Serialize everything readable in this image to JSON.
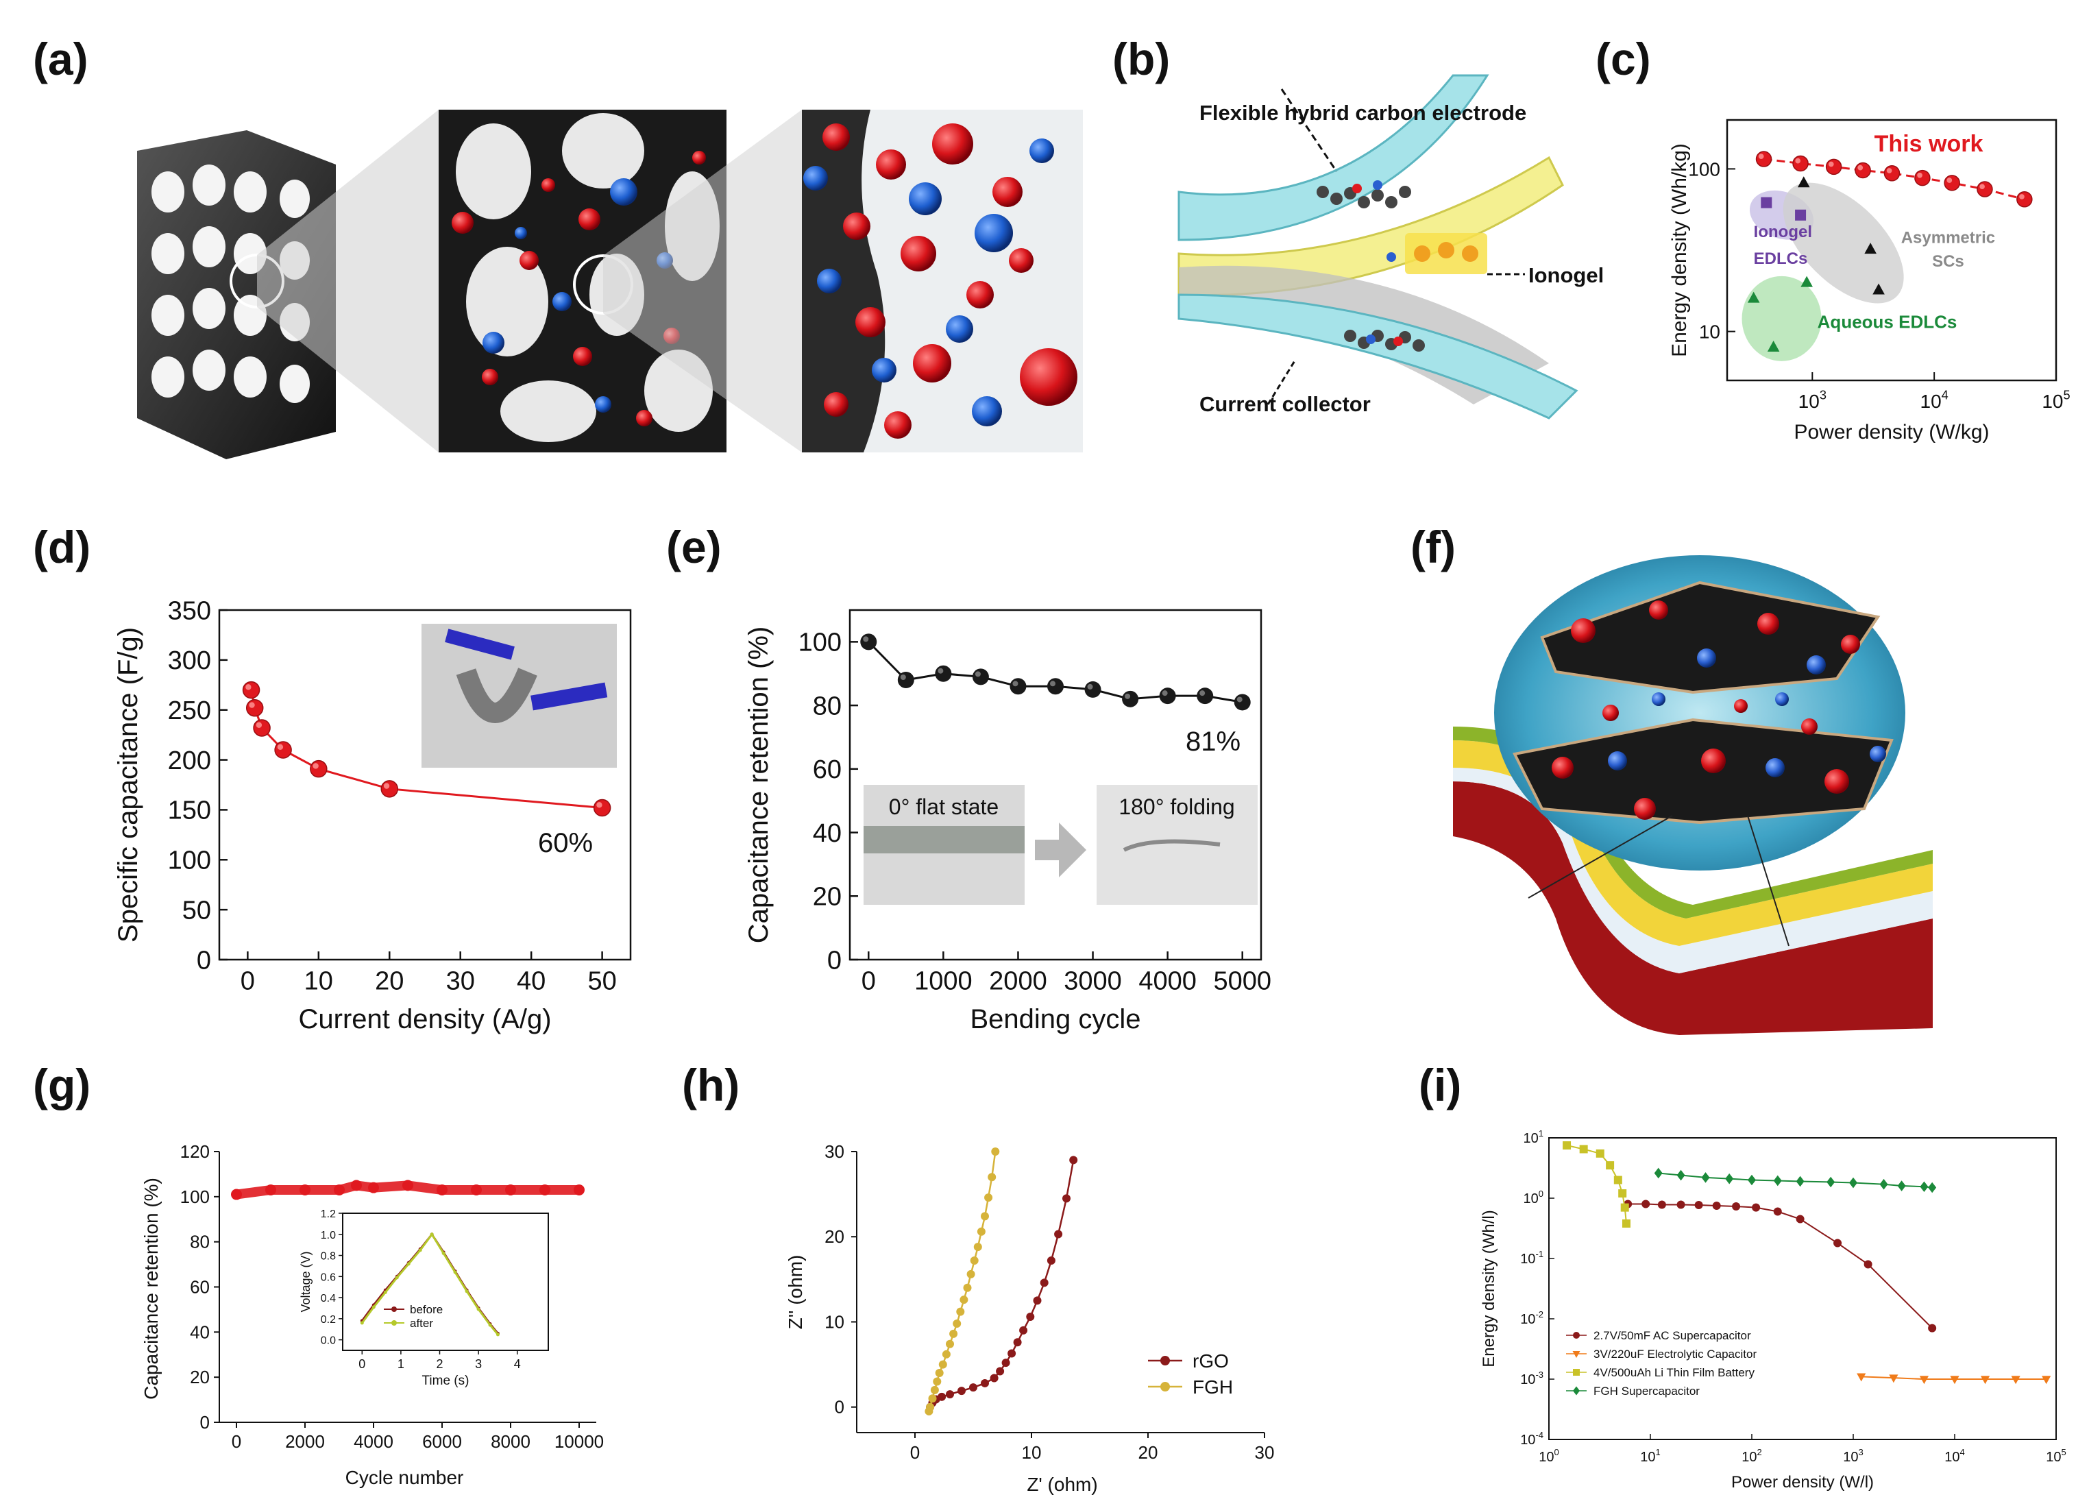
{
  "panel_labels": {
    "a": "(a)",
    "b": "(b)",
    "c": "(c)",
    "d": "(d)",
    "e": "(e)",
    "f": "(f)",
    "g": "(g)",
    "h": "(h)",
    "i": "(i)"
  },
  "illustration_b": {
    "label_electrode": "Flexible hybrid carbon electrode",
    "label_ionogel": "Ionogel",
    "label_collector": "Current collector"
  },
  "colors": {
    "red": "#e0191f",
    "black": "#111111",
    "green": "#1b8a3a",
    "orange": "#f07b1a",
    "olive": "#c9b233",
    "maroon": "#8b1a1a",
    "gray": "#8a8a8a",
    "purple": "#6a3fa0"
  },
  "chart_data": [
    {
      "id": "c",
      "type": "scatter",
      "xlabel": "Power density (W/kg)",
      "ylabel": "Energy density (Wh/kg)",
      "xscale": "log",
      "yscale": "log",
      "xlim": [
        200,
        100000
      ],
      "ylim": [
        5,
        200
      ],
      "xticks": [
        {
          "v": 1000,
          "base": "10",
          "exp": "3"
        },
        {
          "v": 10000,
          "base": "10",
          "exp": "4"
        },
        {
          "v": 100000,
          "base": "10",
          "exp": "5"
        }
      ],
      "yticks": [
        {
          "v": 10,
          "label": "10"
        },
        {
          "v": 100,
          "label": "100"
        }
      ],
      "series": [
        {
          "name": "This work",
          "marker": "circle",
          "color": "#e0191f",
          "line": true,
          "x": [
            400,
            800,
            1500,
            2600,
            4500,
            8000,
            14000,
            26000,
            55000
          ],
          "y": [
            115,
            108,
            103,
            98,
            94,
            88,
            82,
            75,
            65
          ]
        },
        {
          "name": "Ionogel EDLCs",
          "marker": "square",
          "color": "#6a3fa0",
          "line": false,
          "x": [
            420,
            800
          ],
          "y": [
            62,
            52
          ]
        },
        {
          "name": "Asymmetric SCs",
          "marker": "triangle",
          "color": "#111111",
          "line": false,
          "x": [
            850,
            3000,
            3500
          ],
          "y": [
            82,
            32,
            18
          ]
        },
        {
          "name": "Aqueous EDLCs",
          "marker": "triangle",
          "color": "#1b8a3a",
          "line": false,
          "x": [
            330,
            480,
            900
          ],
          "y": [
            16,
            8,
            20
          ]
        }
      ],
      "annotations": [
        "This work",
        "Ionogel\nEDLCs",
        "Asymmetric\nSCs",
        "Aqueous EDLCs"
      ]
    },
    {
      "id": "d",
      "type": "line",
      "xlabel": "Current density (A/g)",
      "ylabel": "Specific capacitance (F/g)",
      "xlim": [
        -4,
        54
      ],
      "ylim": [
        0,
        350
      ],
      "xticks": [
        0,
        10,
        20,
        30,
        40,
        50
      ],
      "yticks": [
        0,
        50,
        100,
        150,
        200,
        250,
        300,
        350
      ],
      "series": [
        {
          "name": "capacitance",
          "color": "#e0191f",
          "x": [
            0.5,
            1,
            2,
            5,
            10,
            20,
            50
          ],
          "y": [
            270,
            252,
            232,
            210,
            191,
            171,
            152
          ]
        }
      ],
      "annotations": [
        "60%"
      ]
    },
    {
      "id": "e",
      "type": "line",
      "xlabel": "Bending cycle",
      "ylabel": "Capacitance retention (%)",
      "xlim": [
        -250,
        5250
      ],
      "ylim": [
        0,
        110
      ],
      "xticks": [
        0,
        1000,
        2000,
        3000,
        4000,
        5000
      ],
      "yticks": [
        0,
        20,
        40,
        60,
        80,
        100
      ],
      "series": [
        {
          "name": "retention",
          "color": "#111111",
          "x": [
            0,
            500,
            1000,
            1500,
            2000,
            2500,
            3000,
            3500,
            4000,
            4500,
            5000
          ],
          "y": [
            100,
            88,
            90,
            89,
            86,
            86,
            85,
            82,
            83,
            83,
            81
          ]
        }
      ],
      "annotations": [
        "81%",
        "0° flat state",
        "180° folding"
      ]
    },
    {
      "id": "g",
      "type": "line",
      "xlabel": "Cycle number",
      "ylabel": "Capacitance retention (%)",
      "xlim": [
        -500,
        10500
      ],
      "ylim": [
        0,
        120
      ],
      "xticks": [
        0,
        2000,
        4000,
        6000,
        8000,
        10000
      ],
      "yticks": [
        0,
        20,
        40,
        60,
        80,
        100,
        120
      ],
      "series": [
        {
          "name": "retention",
          "color": "#e0191f",
          "x": [
            0,
            1000,
            2000,
            3000,
            3500,
            4000,
            5000,
            6000,
            7000,
            8000,
            9000,
            10000
          ],
          "y": [
            101,
            103,
            103,
            103,
            105,
            104,
            105,
            103,
            103,
            103,
            103,
            103
          ]
        }
      ],
      "inset": {
        "xlabel": "Time (s)",
        "ylabel": "Voltage (V)",
        "xlim": [
          -0.5,
          4.8
        ],
        "ylim": [
          -0.1,
          1.2
        ],
        "xticks": [
          0,
          1,
          2,
          3,
          4
        ],
        "yticks": [
          {
            "v": 0,
            "label": "0.0"
          },
          {
            "v": 0.2,
            "label": "0.2"
          },
          {
            "v": 0.4,
            "label": "0.4"
          },
          {
            "v": 0.6,
            "label": "0.6"
          },
          {
            "v": 0.8,
            "label": "0.8"
          },
          {
            "v": 1.0,
            "label": "1.0"
          },
          {
            "v": 1.2,
            "label": "1.2"
          }
        ],
        "series": [
          {
            "name": "before",
            "color": "#8b1a1a",
            "x": [
              0,
              0.3,
              0.6,
              0.9,
              1.2,
              1.5,
              1.8,
              2.1,
              2.4,
              2.7,
              3.0,
              3.3,
              3.5
            ],
            "y": [
              0.18,
              0.33,
              0.47,
              0.6,
              0.73,
              0.86,
              1.0,
              0.83,
              0.65,
              0.47,
              0.3,
              0.15,
              0.06
            ]
          },
          {
            "name": "after",
            "color": "#b5c92a",
            "x": [
              0,
              0.3,
              0.6,
              0.9,
              1.2,
              1.5,
              1.8,
              2.1,
              2.4,
              2.7,
              3.0,
              3.3,
              3.5
            ],
            "y": [
              0.16,
              0.31,
              0.45,
              0.59,
              0.72,
              0.85,
              1.0,
              0.82,
              0.64,
              0.46,
              0.29,
              0.14,
              0.05
            ]
          }
        ]
      }
    },
    {
      "id": "h",
      "type": "line",
      "xlabel": "Z' (ohm)",
      "ylabel": "Z'' (ohm)",
      "xlim": [
        -5,
        30
      ],
      "ylim": [
        -3,
        30
      ],
      "xticks": [
        0,
        10,
        20,
        30
      ],
      "yticks": [
        0,
        10,
        20,
        30
      ],
      "series": [
        {
          "name": "rGO",
          "color": "#8b1a1a",
          "x": [
            1.3,
            1.5,
            1.8,
            2.3,
            3.0,
            4.0,
            5.0,
            6.0,
            6.8,
            7.3,
            7.8,
            8.3,
            8.8,
            9.3,
            9.9,
            10.5,
            11.1,
            11.7,
            12.3,
            13.0,
            13.6
          ],
          "y": [
            0,
            0.5,
            0.9,
            1.2,
            1.5,
            1.9,
            2.3,
            2.8,
            3.4,
            4.2,
            5.2,
            6.3,
            7.6,
            9.0,
            10.6,
            12.5,
            14.6,
            17.2,
            20.3,
            24.5,
            29
          ]
        },
        {
          "name": "FGH",
          "color": "#d6b33a",
          "x": [
            1.2,
            1.3,
            1.5,
            1.7,
            1.9,
            2.1,
            2.4,
            2.7,
            3.0,
            3.3,
            3.6,
            3.9,
            4.2,
            4.5,
            4.8,
            5.1,
            5.4,
            5.7,
            6.0,
            6.3,
            6.6,
            6.9
          ],
          "y": [
            -0.5,
            0,
            1,
            2,
            3,
            4,
            5,
            6.2,
            7.4,
            8.6,
            9.8,
            11.2,
            12.6,
            14,
            15.6,
            17.2,
            18.8,
            20.6,
            22.4,
            24.6,
            27,
            30
          ]
        }
      ]
    },
    {
      "id": "i",
      "type": "line",
      "xlabel": "Power density (W/l)",
      "ylabel": "Energy density (Wh/l)",
      "xscale": "log",
      "yscale": "log",
      "xlim": [
        1,
        100000
      ],
      "ylim": [
        0.0001,
        10
      ],
      "xticks": [
        {
          "v": 1,
          "base": "10",
          "exp": "0"
        },
        {
          "v": 10,
          "base": "10",
          "exp": "1"
        },
        {
          "v": 100,
          "base": "10",
          "exp": "2"
        },
        {
          "v": 1000,
          "base": "10",
          "exp": "3"
        },
        {
          "v": 10000,
          "base": "10",
          "exp": "4"
        },
        {
          "v": 100000,
          "base": "10",
          "exp": "5"
        }
      ],
      "yticks": [
        {
          "v": 0.0001,
          "base": "10",
          "exp": "-4"
        },
        {
          "v": 0.001,
          "base": "10",
          "exp": "-3"
        },
        {
          "v": 0.01,
          "base": "10",
          "exp": "-2"
        },
        {
          "v": 0.1,
          "base": "10",
          "exp": "-1"
        },
        {
          "v": 1,
          "base": "10",
          "exp": "0"
        },
        {
          "v": 10,
          "base": "10",
          "exp": "1"
        }
      ],
      "series": [
        {
          "name": "2.7V/50mF AC Supercapacitor",
          "color": "#8b1a1a",
          "marker": "circle",
          "x": [
            6,
            9,
            13,
            20,
            30,
            45,
            70,
            110,
            180,
            300,
            700,
            1400,
            6000
          ],
          "y": [
            0.8,
            0.8,
            0.78,
            0.78,
            0.77,
            0.75,
            0.73,
            0.7,
            0.6,
            0.45,
            0.18,
            0.08,
            0.007
          ]
        },
        {
          "name": "3V/220uF Electrolytic Capacitor",
          "color": "#f07b1a",
          "marker": "triangle-down",
          "x": [
            1200,
            2500,
            5000,
            10000,
            20000,
            40000,
            80000
          ],
          "y": [
            0.0011,
            0.00105,
            0.001,
            0.001,
            0.001,
            0.001,
            0.001
          ]
        },
        {
          "name": "4V/500uAh Li Thin Film Battery",
          "color": "#c9c228",
          "marker": "square",
          "x": [
            1.5,
            2.2,
            3.2,
            4,
            4.8,
            5.3,
            5.6,
            5.8
          ],
          "y": [
            7.5,
            6.5,
            5.5,
            3.5,
            2,
            1.2,
            0.7,
            0.38
          ]
        },
        {
          "name": "FGH Supercapacitor",
          "color": "#1b8a3a",
          "marker": "diamond",
          "x": [
            12,
            20,
            35,
            60,
            100,
            180,
            300,
            600,
            1000,
            2000,
            3000,
            5000,
            6000
          ],
          "y": [
            2.6,
            2.4,
            2.2,
            2.1,
            2.0,
            1.95,
            1.9,
            1.85,
            1.8,
            1.7,
            1.6,
            1.55,
            1.5
          ]
        }
      ]
    }
  ]
}
